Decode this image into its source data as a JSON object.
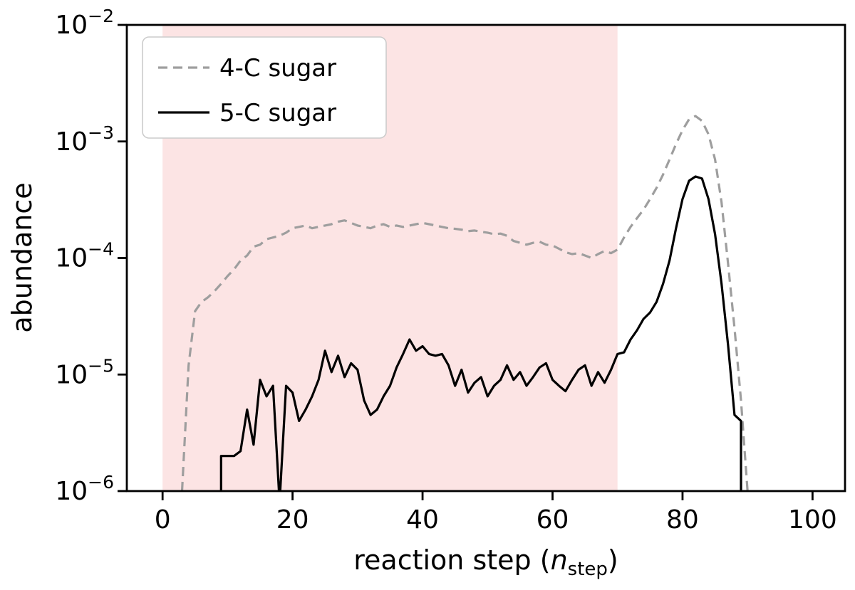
{
  "chart_data": {
    "type": "line",
    "xlabel": "reaction step (n_step)",
    "xlabel_parts": {
      "prefix": "reaction step (",
      "var": "n",
      "sub": "step",
      "suffix": ")"
    },
    "ylabel": "abundance",
    "x_axis": {
      "ticks": [
        0,
        20,
        40,
        60,
        80,
        100
      ],
      "lim": [
        -5.5,
        105
      ]
    },
    "y_axis": {
      "scale": "log",
      "tick_exponents": [
        -2,
        -3,
        -4,
        -5,
        -6
      ],
      "lim_exponents": [
        -6,
        -2
      ]
    },
    "shaded_region": {
      "x0": 0,
      "x1": 70,
      "color": "#fce4e4"
    },
    "legend": {
      "position": "upper left"
    },
    "series": [
      {
        "name": "4-C sugar",
        "color": "#9e9e9e",
        "dash": "dashed",
        "line_width": 3.2,
        "x": [
          3,
          4,
          5,
          6,
          7,
          8,
          9,
          10,
          11,
          12,
          13,
          14,
          15,
          16,
          17,
          18,
          19,
          20,
          21,
          22,
          23,
          24,
          25,
          26,
          27,
          28,
          29,
          30,
          31,
          32,
          33,
          34,
          35,
          36,
          37,
          38,
          39,
          40,
          41,
          42,
          43,
          44,
          45,
          46,
          47,
          48,
          49,
          50,
          51,
          52,
          53,
          54,
          55,
          56,
          57,
          58,
          59,
          60,
          61,
          62,
          63,
          64,
          65,
          66,
          67,
          68,
          69,
          70,
          71,
          72,
          73,
          74,
          75,
          76,
          77,
          78,
          79,
          80,
          81,
          82,
          83,
          84,
          85,
          86,
          87,
          88,
          89,
          90
        ],
        "y": [
          1e-06,
          1.2e-05,
          3.5e-05,
          4.2e-05,
          4.6e-05,
          5.2e-05,
          6e-05,
          7e-05,
          8e-05,
          9.5e-05,
          0.000105,
          0.000125,
          0.00013,
          0.000145,
          0.00015,
          0.000155,
          0.000165,
          0.00018,
          0.000185,
          0.00019,
          0.00018,
          0.000185,
          0.00019,
          0.000195,
          0.000205,
          0.00021,
          0.0002,
          0.00019,
          0.000185,
          0.00018,
          0.00019,
          0.000195,
          0.000185,
          0.00019,
          0.000185,
          0.00019,
          0.000195,
          0.0002,
          0.000195,
          0.00019,
          0.000185,
          0.00018,
          0.000178,
          0.000175,
          0.00017,
          0.000172,
          0.000168,
          0.000165,
          0.00016,
          0.000162,
          0.000155,
          0.00014,
          0.000135,
          0.00013,
          0.000135,
          0.000138,
          0.00013,
          0.000128,
          0.00012,
          0.000112,
          0.000108,
          0.00011,
          0.000105,
          0.0001,
          0.000108,
          0.000115,
          0.00011,
          0.000118,
          0.00015,
          0.000185,
          0.00022,
          0.00026,
          0.00032,
          0.0004,
          0.00052,
          0.0007,
          0.00095,
          0.00125,
          0.00155,
          0.00165,
          0.0015,
          0.00115,
          0.0007,
          0.0003,
          9e-05,
          2.5e-05,
          6e-06,
          1e-06
        ]
      },
      {
        "name": "5-C sugar",
        "color": "#000000",
        "dash": "solid",
        "line_width": 3.2,
        "x": [
          9,
          9,
          10,
          11,
          12,
          13,
          14,
          15,
          16,
          17,
          18,
          19,
          20,
          21,
          22,
          23,
          24,
          25,
          26,
          27,
          28,
          29,
          30,
          31,
          32,
          33,
          34,
          35,
          36,
          37,
          38,
          39,
          40,
          41,
          42,
          43,
          44,
          45,
          46,
          47,
          48,
          49,
          50,
          51,
          52,
          53,
          54,
          55,
          56,
          57,
          58,
          59,
          60,
          61,
          62,
          63,
          64,
          65,
          66,
          67,
          68,
          69,
          70,
          71,
          72,
          73,
          74,
          75,
          76,
          77,
          78,
          79,
          80,
          81,
          82,
          83,
          84,
          85,
          86,
          87,
          88,
          89,
          89
        ],
        "y": [
          6e-07,
          2e-06,
          2e-06,
          2e-06,
          2.2e-06,
          5e-06,
          2.5e-06,
          9e-06,
          6.5e-06,
          8e-06,
          8e-07,
          8e-06,
          7e-06,
          4e-06,
          5e-06,
          6.5e-06,
          9e-06,
          1.6e-05,
          1.05e-05,
          1.45e-05,
          9.5e-06,
          1.25e-05,
          1.1e-05,
          6e-06,
          4.5e-06,
          5e-06,
          6.5e-06,
          8e-06,
          1.15e-05,
          1.5e-05,
          2e-05,
          1.6e-05,
          1.75e-05,
          1.5e-05,
          1.45e-05,
          1.5e-05,
          1.2e-05,
          8e-06,
          1.1e-05,
          7e-06,
          8.5e-06,
          9.5e-06,
          6.5e-06,
          8e-06,
          9e-06,
          1.2e-05,
          9e-06,
          1.05e-05,
          8e-06,
          9.5e-06,
          1.15e-05,
          1.25e-05,
          9e-06,
          8e-06,
          7.2e-06,
          9e-06,
          1.1e-05,
          1.2e-05,
          8e-06,
          1.05e-05,
          8.5e-06,
          1.1e-05,
          1.5e-05,
          1.55e-05,
          2e-05,
          2.4e-05,
          3e-05,
          3.4e-05,
          4.2e-05,
          6e-05,
          9.5e-05,
          0.00018,
          0.00032,
          0.00046,
          0.0005,
          0.00048,
          0.00032,
          0.00016,
          6e-05,
          1.8e-05,
          4.5e-06,
          4e-06,
          5e-07
        ]
      }
    ]
  }
}
